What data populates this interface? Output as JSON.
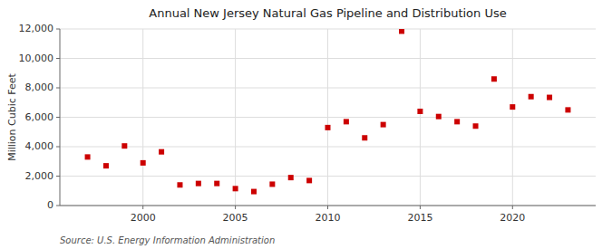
{
  "chart_data": {
    "type": "scatter",
    "title": "Annual New Jersey Natural Gas Pipeline and Distribution Use",
    "y_label": "Million Cubic Feet",
    "source": "Source: U.S. Energy Information Administration",
    "x": [
      1997,
      1998,
      1999,
      2000,
      2001,
      2002,
      2003,
      2004,
      2005,
      2006,
      2007,
      2008,
      2009,
      2010,
      2011,
      2012,
      2013,
      2014,
      2015,
      2016,
      2017,
      2018,
      2019,
      2020,
      2021,
      2022,
      2023
    ],
    "values": [
      3300,
      2700,
      4050,
      2900,
      3650,
      1400,
      1500,
      1500,
      1150,
      950,
      1450,
      1900,
      1700,
      5300,
      5700,
      4600,
      5500,
      11850,
      6400,
      6050,
      5700,
      5400,
      8600,
      6700,
      7400,
      7350,
      6500
    ],
    "color": "#cc0000",
    "marker": "square",
    "xlim": [
      1995.5,
      2024.5
    ],
    "xticks": [
      2000,
      2005,
      2010,
      2015,
      2020
    ],
    "ylim": [
      0,
      12000
    ],
    "yticks": [
      0,
      {
        "value": 2000,
        "label": "2,000"
      },
      {
        "value": 4000,
        "label": "4,000"
      },
      {
        "value": 6000,
        "label": "6,000"
      },
      {
        "value": 8000,
        "label": "8,000"
      },
      {
        "value": 10000,
        "label": "10,000"
      },
      {
        "value": 12000,
        "label": "12,000"
      }
    ],
    "grid": true
  }
}
